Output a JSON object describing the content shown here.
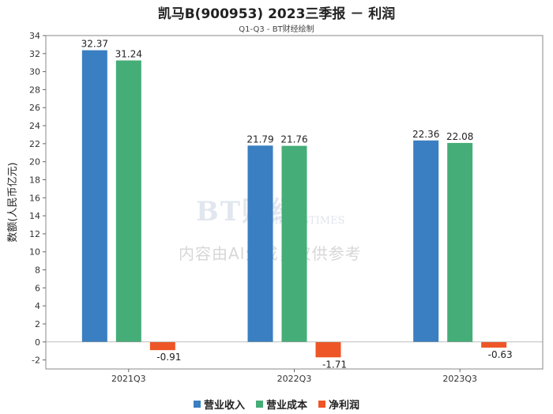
{
  "watermark": {
    "logo": "BT财经",
    "logo_sub": "BUSINESSTIMES",
    "text": "内容由AI生成，仅供参考"
  },
  "chart_data": {
    "type": "bar",
    "title": "凯马B(900953) 2023三季报 － 利润",
    "subtitle": "Q1-Q3 - BT财经绘制",
    "ylabel": "数额(人民币亿元)",
    "xlabel": "",
    "ylim": [
      -3,
      34
    ],
    "yticks": [
      -2,
      0,
      2,
      4,
      6,
      8,
      10,
      12,
      14,
      16,
      18,
      20,
      22,
      24,
      26,
      28,
      30,
      32,
      34
    ],
    "categories": [
      "2021Q3",
      "2022Q3",
      "2023Q3"
    ],
    "series": [
      {
        "name": "营业收入",
        "color": "#3a7fc1",
        "values": [
          32.37,
          21.79,
          22.36
        ]
      },
      {
        "name": "营业成本",
        "color": "#45ad78",
        "values": [
          31.24,
          21.76,
          22.08
        ]
      },
      {
        "name": "净利润",
        "color": "#ee5627",
        "values": [
          -0.91,
          -1.71,
          -0.63
        ]
      }
    ],
    "legend_position": "bottom",
    "grid": false
  }
}
